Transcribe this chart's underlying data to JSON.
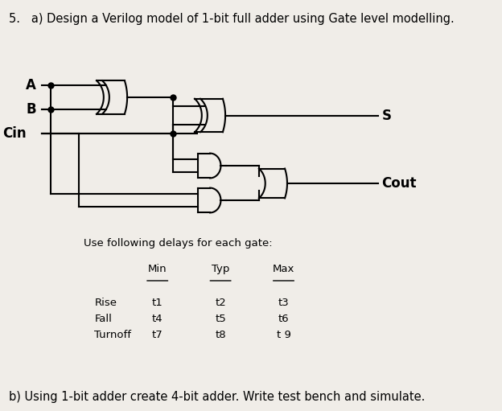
{
  "title_text": "5.   a) Design a Verilog model of 1-bit full adder using Gate level modelling.",
  "subtitle_text": "b) Using 1-bit adder create 4-bit adder. Write test bench and simulate.",
  "delay_text": "Use following delays for each gate:",
  "col_headers": [
    "Min",
    "Typ",
    "Max"
  ],
  "row_labels": [
    "Rise",
    "Fall",
    "Turnoff"
  ],
  "table_data": [
    [
      "t1",
      "t2",
      "t3"
    ],
    [
      "t4",
      "t5",
      "t6"
    ],
    [
      "t7",
      "t8",
      "t 9"
    ]
  ],
  "bg_color": "#f0ede8",
  "line_color": "#000000",
  "font_size": 10,
  "title_font_size": 10.5
}
